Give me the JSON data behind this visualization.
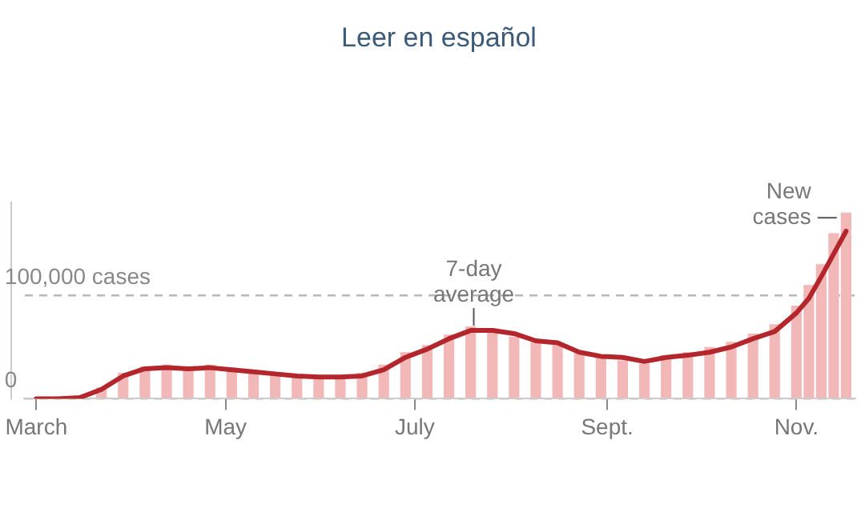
{
  "chart_data": {
    "type": "bar",
    "title": "Leer en español",
    "x": [
      "--03-01",
      "--03-08",
      "--03-15",
      "--03-22",
      "--03-29",
      "--04-05",
      "--04-12",
      "--04-19",
      "--04-26",
      "--05-03",
      "--05-10",
      "--05-17",
      "--05-24",
      "--05-31",
      "--06-07",
      "--06-14",
      "--06-21",
      "--06-28",
      "--07-05",
      "--07-12",
      "--07-19",
      "--07-26",
      "--08-02",
      "--08-09",
      "--08-16",
      "--08-23",
      "--08-30",
      "--09-06",
      "--09-13",
      "--09-20",
      "--09-27",
      "--10-04",
      "--10-11",
      "--10-18",
      "--10-25",
      "--11-01",
      "--11-05",
      "--11-09",
      "--11-13",
      "--11-17"
    ],
    "series": [
      {
        "color": "#f2b8b8",
        "values": [
          0,
          0,
          2000,
          11000,
          25000,
          31000,
          33000,
          30000,
          33000,
          30000,
          27000,
          25000,
          22000,
          20000,
          22000,
          25000,
          33000,
          45000,
          52000,
          62000,
          70000,
          68000,
          60000,
          55000,
          52000,
          44000,
          42000,
          37000,
          34000,
          42000,
          45000,
          50000,
          55000,
          63000,
          72000,
          90000,
          110000,
          130000,
          160000,
          180000
        ]
      },
      {
        "type": "line",
        "color": "#b3262b",
        "values": [
          0,
          0,
          1000,
          9000,
          22000,
          29000,
          30000,
          29000,
          30000,
          28000,
          26000,
          24000,
          22000,
          21000,
          21000,
          22000,
          28000,
          40000,
          48000,
          58000,
          66000,
          66000,
          63000,
          56000,
          54000,
          45000,
          41000,
          40000,
          36000,
          40000,
          42000,
          45000,
          50000,
          58000,
          65000,
          83000,
          97000,
          118000,
          140000,
          162000
        ]
      }
    ],
    "xlim": [
      "--02-26",
      "--11-20"
    ],
    "xticks": [
      {
        "value": "--03-01",
        "label": "March"
      },
      {
        "value": "--05-01",
        "label": "May"
      },
      {
        "value": "--07-01",
        "label": "July"
      },
      {
        "value": "--09-01",
        "label": "Sept."
      },
      {
        "value": "--11-01",
        "label": "Nov."
      }
    ],
    "ylim": [
      0,
      190000
    ],
    "yticks": [
      {
        "value": 0,
        "label": "0"
      },
      {
        "value": 100000,
        "label": "100,000 cases"
      }
    ],
    "grid": "y",
    "legend": false,
    "marker": "none",
    "line_style": "solid",
    "annotations": [
      {
        "text": "7-day average",
        "x": "--07-20",
        "y": 66000
      },
      {
        "text": "New cases",
        "x": "--11-14",
        "y": 175000
      }
    ]
  }
}
